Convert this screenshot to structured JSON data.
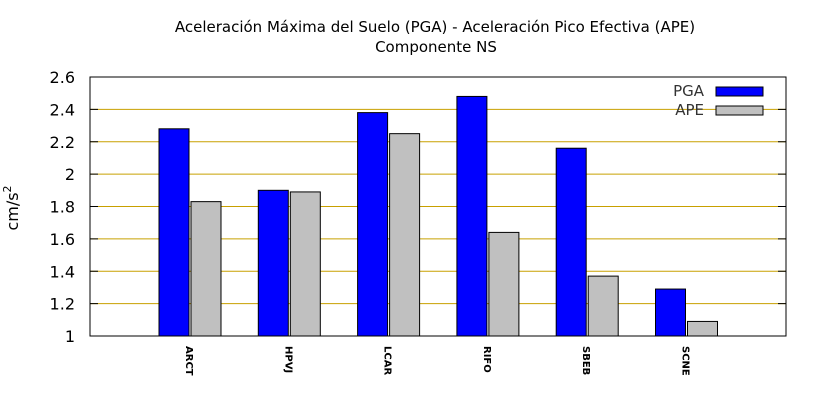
{
  "chart_data": {
    "type": "bar",
    "title": "Aceleración Máxima del Suelo (PGA) -  Aceleración Pico Efectiva (APE)",
    "subtitle": "Componente NS",
    "xlabel": "",
    "ylabel": "cm/s",
    "ylabel_superscript": "2",
    "ylim": [
      1,
      2.6
    ],
    "yticks": [
      "1",
      "1.2",
      "1.4",
      "1.6",
      "1.8",
      "2",
      "2.2",
      "2.4",
      "2.6"
    ],
    "categories": [
      "ARCT",
      "HPVJ",
      "LCAR",
      "RIFO",
      "SBEB",
      "SCNE"
    ],
    "series": [
      {
        "name": "PGA",
        "color": "#0000ff",
        "values": [
          2.28,
          1.9,
          2.38,
          2.48,
          2.16,
          1.29
        ]
      },
      {
        "name": "APE",
        "color": "#c0c0c0",
        "values": [
          1.83,
          1.89,
          2.25,
          1.64,
          1.37,
          1.09
        ]
      }
    ],
    "grid": true,
    "grid_color": "#c8a000",
    "legend_position": "top-right"
  }
}
